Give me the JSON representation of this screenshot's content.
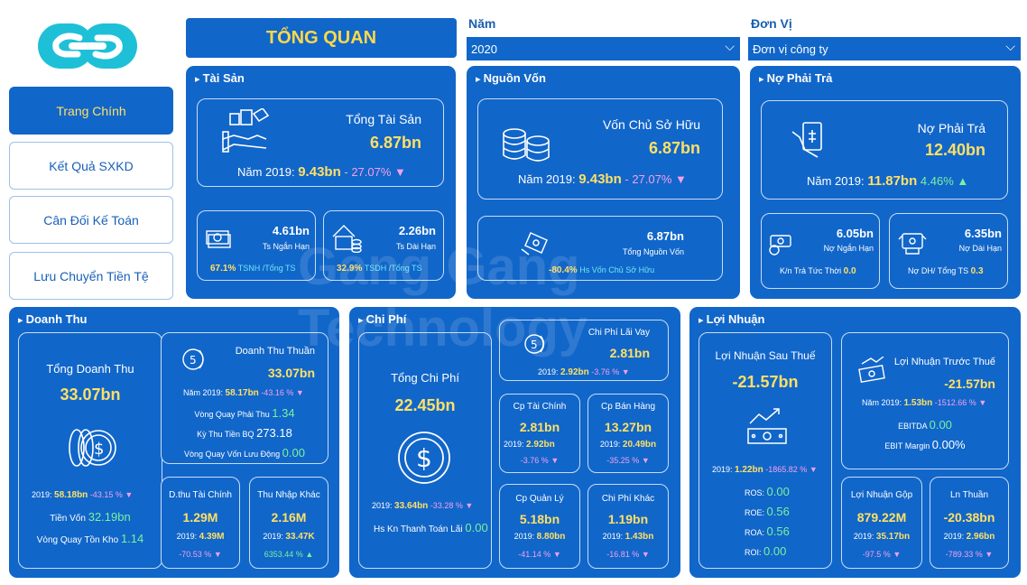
{
  "nav": {
    "title": "TỔNG QUAN",
    "items": [
      "Trang Chính",
      "Kết Quả SXKD",
      "Cân Đối Kế Toán",
      "Lưu Chuyển Tiền Tệ"
    ]
  },
  "filters": {
    "year_label": "Năm",
    "year_value": "2020",
    "unit_label": "Đơn Vị",
    "unit_value": "Đơn vị công ty"
  },
  "watermark": {
    "line1": "Gang Gang",
    "line2": "Technology"
  },
  "tai_san": {
    "title": "Tài Sản",
    "total_label": "Tổng Tài Sản",
    "total_value": "6.87bn",
    "prev_label": "Năm 2019:",
    "prev_value": "9.43bn",
    "change": "- 27.07%",
    "short": {
      "value": "4.61bn",
      "label": "Ts Ngắn Hạn",
      "pct": "67.1%",
      "pct_label": "TSNH /Tổng TS"
    },
    "long": {
      "value": "2.26bn",
      "label": "Ts Dài Hạn",
      "pct": "32.9%",
      "pct_label": "TSDH /Tổng TS"
    }
  },
  "nguon_von": {
    "title": "Nguồn Vốn",
    "equity_label": "Vốn Chủ Sở Hữu",
    "equity_value": "6.87bn",
    "prev_label": "Năm 2019:",
    "prev_value": "9.43bn",
    "change": "- 27.07%",
    "total_value": "6.87bn",
    "total_label": "Tổng Nguồn Vốn",
    "ratio_pct": "-80.4%",
    "ratio_label": "Hs Vốn Chủ Sở Hữu"
  },
  "no_phai_tra": {
    "title": "Nợ Phải Trả",
    "total_label": "Nợ Phải Trả",
    "total_value": "12.40bn",
    "prev_label": "Năm 2019:",
    "prev_value": "11.87bn",
    "change": "4.46%",
    "short": {
      "value": "6.05bn",
      "label": "Nợ Ngắn Hạn",
      "ratio_label": "K/n Trả Tức Thời",
      "ratio_value": "0.0"
    },
    "long": {
      "value": "6.35bn",
      "label": "Nợ Dài Hạn",
      "ratio_label": "Nợ DH/ Tổng TS",
      "ratio_value": "0.3"
    }
  },
  "doanh_thu": {
    "title": "Doanh Thu",
    "total_label": "Tổng Doanh Thu",
    "total_value": "33.07bn",
    "prev_label": "2019:",
    "prev_value": "58.18bn",
    "change": "-43.15 %",
    "cash_label": "Tiền Vốn",
    "cash_value": "32.19bn",
    "inv_label": "Vòng Quay Tồn Kho",
    "inv_value": "1.14",
    "net": {
      "label": "Doanh Thu Thuần",
      "value": "33.07bn",
      "prev_label": "Năm 2019:",
      "prev_value": "58.17bn",
      "change": "-43.16 %",
      "r1_label": "Vòng Quay Phải Thu",
      "r1_value": "1.34",
      "r2_label": "Kỳ Thu Tiền BQ",
      "r2_value": "273.18",
      "r3_label": "Vòng Quay Vốn Lưu Động",
      "r3_value": "0.00"
    },
    "fin": {
      "label": "D.thu Tài Chính",
      "value": "1.29M",
      "prev_label": "2019:",
      "prev_value": "4.39M",
      "change": "-70.53 %"
    },
    "other": {
      "label": "Thu Nhập Khác",
      "value": "2.16M",
      "prev_label": "2019:",
      "prev_value": "33.47K",
      "change": "6353.44 %"
    }
  },
  "chi_phi": {
    "title": "Chi Phí",
    "total_label": "Tổng Chi Phí",
    "total_value": "22.45bn",
    "prev_label": "2019:",
    "prev_value": "33.64bn",
    "change": "-33.28 %",
    "ratio_label": "Hs Kn Thanh Toán Lãi",
    "ratio_value": "0.00",
    "interest": {
      "label": "Chi Phí Lãi Vay",
      "value": "2.81bn",
      "prev_label": "2019:",
      "prev_value": "2.92bn",
      "change": "-3.76 %"
    },
    "fin": {
      "label": "Cp Tài Chính",
      "value": "2.81bn",
      "prev_label": "2019:",
      "prev_value": "2.92bn",
      "change": "-3.76 %"
    },
    "sales": {
      "label": "Cp Bán Hàng",
      "value": "13.27bn",
      "prev_label": "2019:",
      "prev_value": "20.49bn",
      "change": "-35.25 %"
    },
    "admin": {
      "label": "Cp Quản Lý",
      "value": "5.18bn",
      "prev_label": "2019:",
      "prev_value": "8.80bn",
      "change": "-41.14 %"
    },
    "other": {
      "label": "Chi Phí Khác",
      "value": "1.19bn",
      "prev_label": "2019:",
      "prev_value": "1.43bn",
      "change": "-16.81 %"
    }
  },
  "loi_nhuan": {
    "title": "Lợi Nhuận",
    "after_tax_label": "Lợi Nhuận Sau Thuế",
    "after_tax_value": "-21.57bn",
    "prev_label": "2019:",
    "prev_value": "1.22bn",
    "change": "-1865.82 %",
    "ros_label": "ROS:",
    "ros_value": "0.00",
    "roe_label": "ROE:",
    "roe_value": "0.56",
    "roa_label": "ROA:",
    "roa_value": "0.56",
    "roi_label": "ROI:",
    "roi_value": "0.00",
    "before_tax": {
      "label": "Lợi Nhuận Trước Thuế",
      "value": "-21.57bn",
      "prev_label": "Năm 2019:",
      "prev_value": "1.53bn",
      "change": "-1512.66 %",
      "ebitda_label": "EBITDA",
      "ebitda_value": "0.00",
      "ebit_label": "EBIT Margin",
      "ebit_value": "0.00%"
    },
    "gross": {
      "label": "Lợi Nhuận Gộp",
      "value": "879.22M",
      "prev_label": "2019:",
      "prev_value": "35.17bn",
      "change": "-97.5 %"
    },
    "net": {
      "label": "Ln Thuần",
      "value": "-20.38bn",
      "prev_label": "2019:",
      "prev_value": "2.96bn",
      "change": "-789.33 %"
    }
  }
}
